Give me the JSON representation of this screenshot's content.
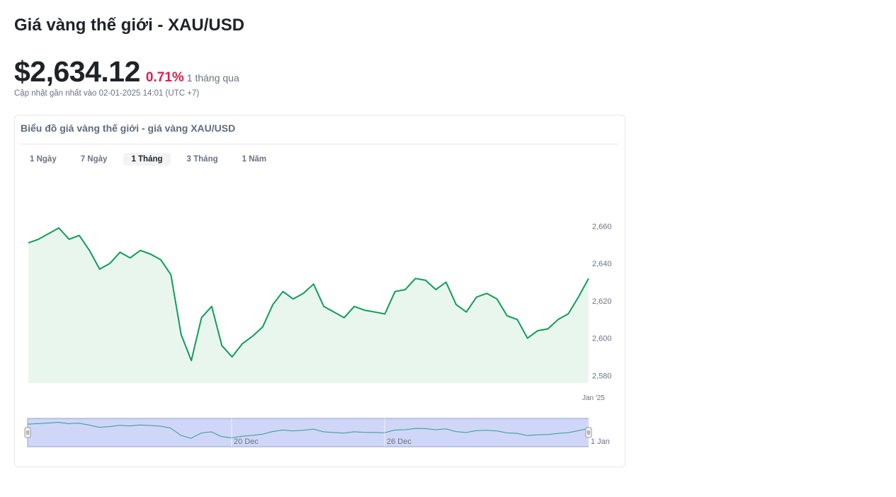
{
  "header": {
    "title": "Giá vàng thế giới - XAU/USD",
    "price": "$2,634.12",
    "change": "0.71%",
    "change_color": "#e11d48",
    "period": "1 tháng qua",
    "updated": "Cập nhật gần nhất vào 02-01-2025 14:01 (UTC +7)"
  },
  "card": {
    "title": "Biểu đồ giá vàng thế giới - giá vàng XAU/USD",
    "tabs": [
      {
        "label": "1 Ngày",
        "active": false
      },
      {
        "label": "7 Ngày",
        "active": false
      },
      {
        "label": "1 Tháng",
        "active": true
      },
      {
        "label": "3 Tháng",
        "active": false
      },
      {
        "label": "1 Năm",
        "active": false
      }
    ]
  },
  "colors": {
    "line": "#0f9d58",
    "area": "#e9f6ee",
    "navigator_fill": "#cfd6f7",
    "navigator_line": "#2f9e8f"
  },
  "chart_data": {
    "type": "area",
    "title": "",
    "xlabel": "",
    "ylabel": "",
    "ylim": [
      2576,
      2670
    ],
    "y_ticks": [
      2580,
      2600,
      2620,
      2640,
      2660
    ],
    "y_tick_labels": [
      "2,580",
      "2,600",
      "2,620",
      "2,640",
      "2,660"
    ],
    "x_tick_labels": [
      {
        "label": "Jan '25",
        "x": 275
      }
    ],
    "navigator_labels": [
      {
        "label": "20 Dec",
        "x": 100
      },
      {
        "label": "26 Dec",
        "x": 175
      },
      {
        "label": "1 Jan",
        "x": 275
      }
    ],
    "grid": false,
    "legend": "none",
    "series": [
      {
        "x": [
          0,
          5,
          10,
          15,
          20,
          25,
          30,
          35,
          40,
          45,
          50,
          55,
          60,
          65,
          70,
          75,
          80,
          85,
          90,
          95,
          100,
          105,
          110,
          115,
          120,
          125,
          130,
          135,
          140,
          145,
          150,
          155,
          160,
          165,
          170,
          175,
          180,
          185,
          190,
          195,
          200,
          205,
          210,
          215,
          220,
          225,
          230,
          235,
          240,
          245,
          250,
          255,
          260,
          265,
          270,
          275
        ],
        "values": [
          2651,
          2653,
          2656,
          2659,
          2653,
          2655,
          2647,
          2637,
          2640,
          2646,
          2643,
          2647,
          2645,
          2642,
          2634,
          2602,
          2588,
          2611,
          2617,
          2596,
          2590,
          2597,
          2601,
          2606,
          2618,
          2625,
          2621,
          2624,
          2629,
          2617,
          2614,
          2611,
          2617,
          2615,
          2614,
          2613,
          2625,
          2626,
          2632,
          2631,
          2626,
          2630,
          2618,
          2614,
          2622,
          2624,
          2621,
          2612,
          2610,
          2600,
          2604,
          2605,
          2610,
          2613,
          2622,
          2632
        ]
      }
    ]
  }
}
